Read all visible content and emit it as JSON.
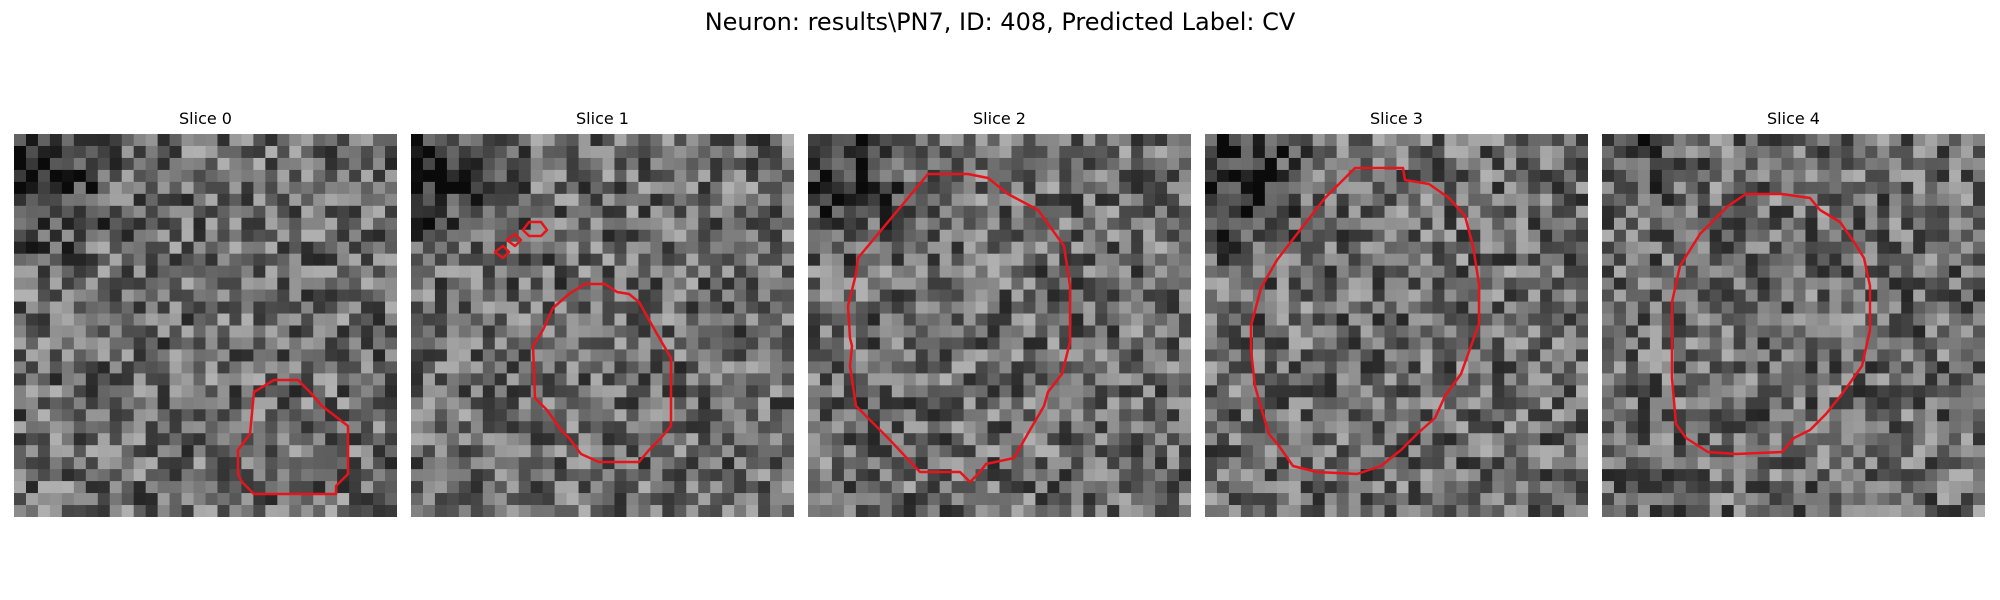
{
  "figure": {
    "title": "Neuron: results\\PN7, ID: 408, Predicted Label: CV"
  },
  "panels": [
    {
      "title": "Slice 0"
    },
    {
      "title": "Slice 1"
    },
    {
      "title": "Slice 2"
    },
    {
      "title": "Slice 3"
    },
    {
      "title": "Slice 4"
    }
  ],
  "style": {
    "contour_color": "#e8141c",
    "colormap": "gray"
  }
}
